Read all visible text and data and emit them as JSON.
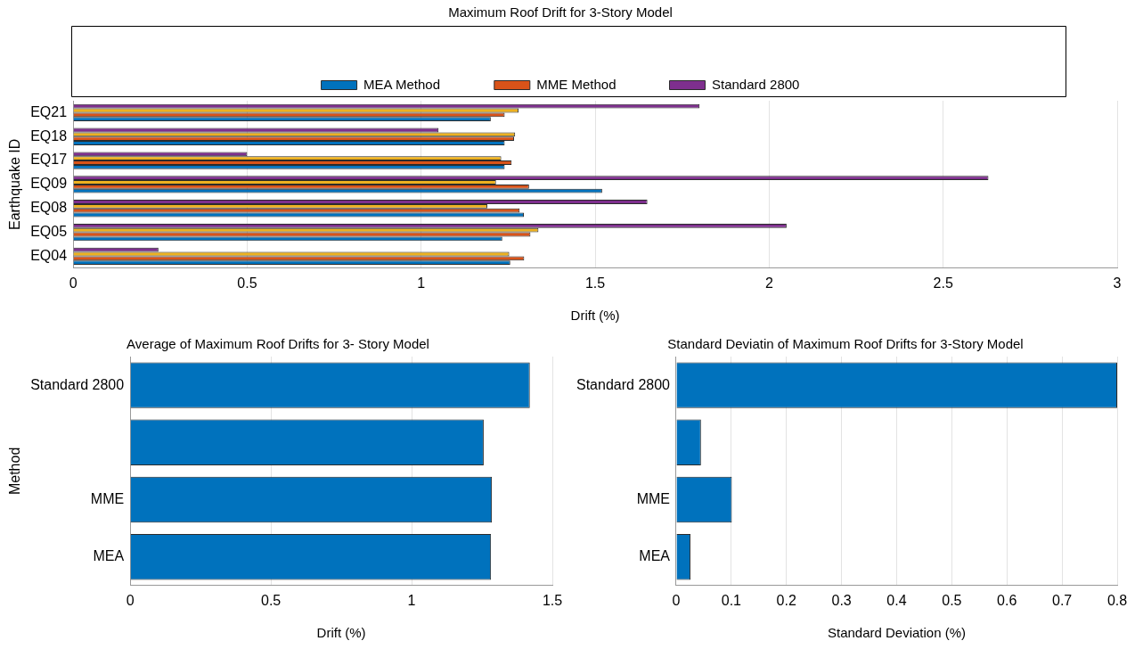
{
  "chart_data": [
    {
      "type": "bar",
      "orientation": "horizontal",
      "title": "Maximum Roof Drift for 3-Story Model",
      "xlabel": "Drift (%)",
      "ylabel": "Earthquake ID",
      "categories": [
        "EQ21",
        "EQ18",
        "EQ17",
        "EQ09",
        "EQ08",
        "EQ05",
        "EQ04"
      ],
      "series": [
        {
          "name": "MEA Method",
          "color": "#0072bd",
          "values": [
            1.2,
            1.24,
            1.24,
            1.52,
            1.295,
            1.233,
            1.256
          ]
        },
        {
          "name": "MME Method",
          "color": "#d95319",
          "values": [
            1.24,
            1.267,
            1.26,
            1.31,
            1.283,
            1.314,
            1.296
          ]
        },
        {
          "color": "#edb120",
          "values": [
            1.28,
            1.27,
            1.23,
            1.215,
            1.19,
            1.337,
            1.253
          ]
        },
        {
          "name": "Standard 2800",
          "color": "#7e2f8e",
          "values": [
            1.8,
            1.05,
            0.5,
            2.63,
            1.65,
            2.05,
            0.245
          ]
        }
      ],
      "xlim": [
        0,
        3
      ],
      "xticks": [
        0,
        0.5,
        1,
        1.5,
        2,
        2.5,
        3
      ],
      "grid": "x",
      "legend": "top"
    },
    {
      "type": "bar",
      "orientation": "horizontal",
      "title": "Average of Maximum Roof Drifts for 3- Story Model",
      "xlabel": "Drift (%)",
      "ylabel": "Method",
      "categories": [
        "Standard 2800",
        null,
        "MME",
        "MEA"
      ],
      "values": [
        1.42,
        1.256,
        1.285,
        1.282
      ],
      "color": "#0072bd",
      "xlim": [
        0,
        1.5
      ],
      "xticks": [
        0,
        0.5,
        1,
        1.5
      ],
      "grid": "x"
    },
    {
      "type": "bar",
      "orientation": "horizontal",
      "title": "Standard Deviatin of Maximum Roof Drifts for 3-Story Model",
      "xlabel": "Standard Deviation (%)",
      "categories": [
        "Standard 2800",
        null,
        "MME",
        "MEA"
      ],
      "values": [
        0.8,
        0.045,
        0.101,
        0.026
      ],
      "color": "#0072bd",
      "xlim": [
        0,
        0.8
      ],
      "xticks": [
        0,
        0.1,
        0.2,
        0.3,
        0.4,
        0.5,
        0.6,
        0.7,
        0.8
      ],
      "grid": "x"
    }
  ]
}
